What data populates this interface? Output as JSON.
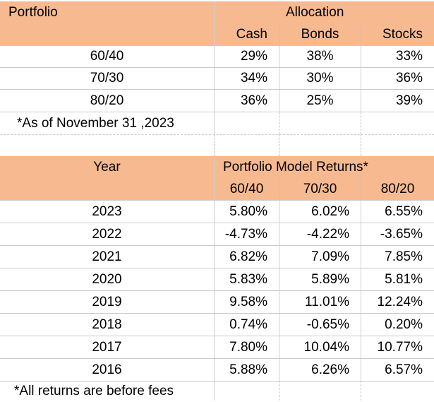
{
  "allocation": {
    "header_portfolio": "Portfolio",
    "header_allocation": "Allocation",
    "subheaders": [
      "Cash",
      "Bonds",
      "Stocks"
    ],
    "rows": [
      {
        "portfolio": "60/40",
        "cash": "29%",
        "bonds": "38%",
        "stocks": "33%"
      },
      {
        "portfolio": "70/30",
        "cash": "34%",
        "bonds": "30%",
        "stocks": "36%"
      },
      {
        "portfolio": "80/20",
        "cash": "36%",
        "bonds": "25%",
        "stocks": "39%"
      }
    ],
    "note": "*As of November 31 ,2023"
  },
  "returns": {
    "header_year": "Year",
    "header_returns": "Portfolio Model Returns*",
    "subheaders": [
      "60/40",
      "70/30",
      "80/20"
    ],
    "rows": [
      {
        "year": "2023",
        "r6040": "5.80%",
        "r7030": "6.02%",
        "r8020": "6.55%"
      },
      {
        "year": "2022",
        "r6040": "-4.73%",
        "r7030": "-4.22%",
        "r8020": "-3.65%"
      },
      {
        "year": "2021",
        "r6040": "6.82%",
        "r7030": "7.09%",
        "r8020": "7.85%"
      },
      {
        "year": "2020",
        "r6040": "5.83%",
        "r7030": "5.89%",
        "r8020": "5.81%"
      },
      {
        "year": "2019",
        "r6040": "9.58%",
        "r7030": "11.01%",
        "r8020": "12.24%"
      },
      {
        "year": "2018",
        "r6040": "0.74%",
        "r7030": "-0.65%",
        "r8020": "0.20%"
      },
      {
        "year": "2017",
        "r6040": "7.80%",
        "r7030": "10.04%",
        "r8020": "10.77%"
      },
      {
        "year": "2016",
        "r6040": "5.88%",
        "r7030": "6.26%",
        "r8020": "6.57%"
      }
    ],
    "note": "*All returns are before fees"
  },
  "colors": {
    "header_fill": "#f7ba90"
  }
}
